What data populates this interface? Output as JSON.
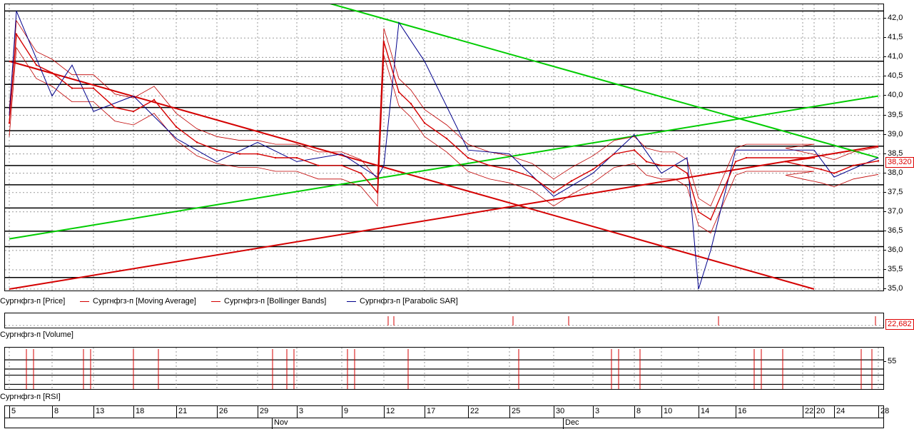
{
  "chart_data": [
    {
      "type": "line",
      "title": "",
      "ylim": [
        35.0,
        42.3
      ],
      "y_ticks": [
        "42,0",
        "41,5",
        "41,0",
        "40,5",
        "40,0",
        "39,5",
        "39,0",
        "38,5",
        "38,0",
        "37,5",
        "37,0",
        "36,5",
        "36,0",
        "35,5",
        "35,0"
      ],
      "y_tick_values": [
        42.0,
        41.5,
        41.0,
        40.5,
        40.0,
        39.5,
        39.0,
        38.5,
        38.0,
        37.5,
        37.0,
        36.5,
        36.0,
        35.5,
        35.0
      ],
      "grid": true,
      "legend": "bottom-left",
      "last_value_label": "38,320",
      "x_dates": [
        "Oct 5",
        "Oct 8",
        "Oct 13",
        "Oct 18",
        "Oct 21",
        "Oct 26",
        "Oct 29",
        "Nov 3",
        "Nov 9",
        "Nov 12",
        "Nov 17",
        "Nov 22",
        "Nov 25",
        "Nov 30",
        "Dec 3",
        "Dec 8",
        "Dec 10",
        "Dec 14",
        "Dec 16",
        "Dec 20",
        "Dec 22",
        "Dec 24",
        "Dec 28"
      ],
      "series": [
        {
          "name": "Сургнфгз-п [Price]",
          "color": "#d40000",
          "x": [
            "Oct 5",
            "Oct 6",
            "Oct 7",
            "Oct 8",
            "Oct 11",
            "Oct 13",
            "Oct 15",
            "Oct 18",
            "Oct 19",
            "Oct 21",
            "Oct 23",
            "Oct 26",
            "Oct 28",
            "Oct 29",
            "Nov 1",
            "Nov 3",
            "Nov 5",
            "Nov 9",
            "Nov 10",
            "Nov 11",
            "Nov 12",
            "Nov 13",
            "Nov 15",
            "Nov 17",
            "Nov 19",
            "Nov 22",
            "Nov 23",
            "Nov 25",
            "Nov 27",
            "Nov 30",
            "Dec 1",
            "Dec 3",
            "Dec 6",
            "Dec 8",
            "Dec 9",
            "Dec 10",
            "Dec 12",
            "Dec 13",
            "Dec 14",
            "Dec 15",
            "Dec 16",
            "Dec 17",
            "Dec 20",
            "Dec 21",
            "Dec 22",
            "Dec 23",
            "Dec 24",
            "Dec 27",
            "Dec 28"
          ],
          "values": [
            39.3,
            41.6,
            40.8,
            40.6,
            40.2,
            40.2,
            39.7,
            39.6,
            39.9,
            39.2,
            38.8,
            38.6,
            38.5,
            38.5,
            38.4,
            38.4,
            38.2,
            38.2,
            38.0,
            37.5,
            41.4,
            40.1,
            39.8,
            39.3,
            38.9,
            38.4,
            38.2,
            38.1,
            37.9,
            37.5,
            37.8,
            38.1,
            38.5,
            38.6,
            38.3,
            38.2,
            38.2,
            38.0,
            37.0,
            36.8,
            38.3,
            38.4,
            38.4,
            38.3,
            38.2,
            38.1,
            38.0,
            38.2,
            38.32
          ]
        },
        {
          "name": "Сургнфгз-п [Moving Average]",
          "color": "#d40000"
        },
        {
          "name": "Сургнфгз-п [Bollinger Bands]",
          "color": "#d40000"
        },
        {
          "name": "Сургнфгз-п [Parabolic SAR]",
          "color": "#00008b",
          "x": [
            "Oct 5",
            "Oct 6",
            "Oct 8",
            "Oct 11",
            "Oct 13",
            "Oct 18",
            "Oct 21",
            "Oct 26",
            "Oct 29",
            "Nov 3",
            "Nov 9",
            "Nov 11",
            "Nov 12",
            "Nov 13",
            "Nov 17",
            "Nov 22",
            "Nov 25",
            "Nov 30",
            "Dec 3",
            "Dec 8",
            "Dec 10",
            "Dec 13",
            "Dec 14",
            "Dec 15",
            "Dec 16",
            "Dec 20",
            "Dec 24",
            "Dec 28"
          ],
          "values": [
            39.5,
            42.2,
            40.0,
            40.8,
            39.6,
            40.0,
            38.9,
            38.3,
            38.8,
            38.3,
            38.5,
            37.9,
            38.2,
            41.9,
            40.9,
            38.6,
            38.5,
            37.4,
            38.0,
            39.0,
            38.0,
            38.4,
            35.0,
            36.0,
            38.6,
            38.6,
            37.9,
            38.4
          ]
        }
      ],
      "trendlines": [
        {
          "color": "#d40000",
          "from": [
            "Oct 5",
            40.9
          ],
          "to": [
            "Dec 20",
            35.0
          ]
        },
        {
          "color": "#d40000",
          "from": [
            "Oct 5",
            35.0
          ],
          "to": [
            "Dec 28",
            38.7
          ]
        },
        {
          "color": "#00cc00",
          "from": [
            "Oct 5",
            36.3
          ],
          "to": [
            "Dec 28",
            40.0
          ]
        },
        {
          "color": "#00cc00",
          "from": [
            "Nov 4",
            42.4
          ],
          "to": [
            "Dec 28",
            38.4
          ]
        }
      ],
      "levels": [
        42.2,
        40.9,
        40.3,
        39.7,
        39.1,
        38.7,
        38.2,
        37.7,
        37.1,
        36.5,
        36.1,
        35.3
      ]
    },
    {
      "type": "bar",
      "title": "Сургнфгз-п [Volume]",
      "last_value_label": "22,682"
    },
    {
      "type": "line",
      "title": "Сургнфгз-п [RSI]",
      "y_ticks": [
        "55"
      ],
      "y_tick_values": [
        55
      ],
      "levels": [
        70,
        55,
        45,
        30
      ]
    }
  ],
  "x_axis": {
    "day_labels": [
      "5",
      "8",
      "13",
      "18",
      "21",
      "26",
      "29",
      "3",
      "9",
      "12",
      "17",
      "22",
      "25",
      "30",
      "3",
      "8",
      "10",
      "14",
      "16",
      "20",
      "22",
      "24",
      "28"
    ],
    "month_labels": [
      "Nov",
      "Dec"
    ]
  }
}
